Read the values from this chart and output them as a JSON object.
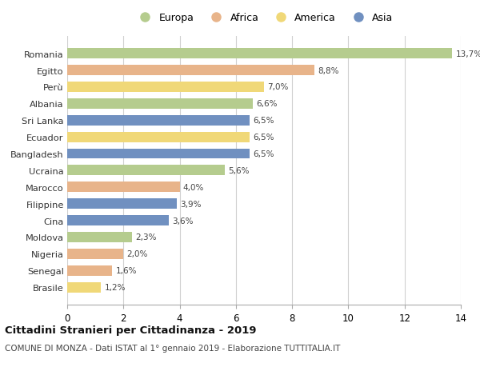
{
  "categories": [
    "Romania",
    "Egitto",
    "Perù",
    "Albania",
    "Sri Lanka",
    "Ecuador",
    "Bangladesh",
    "Ucraina",
    "Marocco",
    "Filippine",
    "Cina",
    "Moldova",
    "Nigeria",
    "Senegal",
    "Brasile"
  ],
  "values": [
    13.7,
    8.8,
    7.0,
    6.6,
    6.5,
    6.5,
    6.5,
    5.6,
    4.0,
    3.9,
    3.6,
    2.3,
    2.0,
    1.6,
    1.2
  ],
  "labels": [
    "13,7%",
    "8,8%",
    "7,0%",
    "6,6%",
    "6,5%",
    "6,5%",
    "6,5%",
    "5,6%",
    "4,0%",
    "3,9%",
    "3,6%",
    "2,3%",
    "2,0%",
    "1,6%",
    "1,2%"
  ],
  "continents": [
    "Europa",
    "Africa",
    "America",
    "Europa",
    "Asia",
    "America",
    "Asia",
    "Europa",
    "Africa",
    "Asia",
    "Asia",
    "Europa",
    "Africa",
    "Africa",
    "America"
  ],
  "colors": {
    "Europa": "#b5cc8e",
    "Africa": "#e8b48a",
    "America": "#f0d878",
    "Asia": "#7090c0"
  },
  "legend_order": [
    "Europa",
    "Africa",
    "America",
    "Asia"
  ],
  "xlim": [
    0,
    14
  ],
  "xticks": [
    0,
    2,
    4,
    6,
    8,
    10,
    12,
    14
  ],
  "title": "Cittadini Stranieri per Cittadinanza - 2019",
  "subtitle": "COMUNE DI MONZA - Dati ISTAT al 1° gennaio 2019 - Elaborazione TUTTITALIA.IT",
  "background_color": "#ffffff",
  "grid_color": "#d0d0d0"
}
